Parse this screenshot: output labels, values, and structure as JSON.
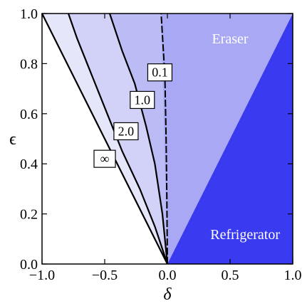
{
  "chart_data": {
    "type": "area",
    "title": "",
    "xlabel": "δ",
    "ylabel": "ϵ",
    "xlim": [
      -1.0,
      1.0
    ],
    "ylim": [
      0.0,
      1.0
    ],
    "grid": false,
    "xticks": [
      "−1.0",
      "−0.5",
      "0.0",
      "0.5",
      "1.0"
    ],
    "yticks": [
      "0.0",
      "0.2",
      "0.4",
      "0.6",
      "0.8",
      "1.0"
    ],
    "regions": [
      {
        "label": "Eraser",
        "color": "#a8a8f5",
        "polygon": [
          [
            0.0,
            0.0
          ],
          [
            1.0,
            1.0
          ],
          [
            -0.05,
            1.0
          ]
        ]
      },
      {
        "label": "Refrigerator",
        "color": "#3a3af0",
        "polygon": [
          [
            0.0,
            0.0
          ],
          [
            1.0,
            0.0
          ],
          [
            1.0,
            1.0
          ]
        ]
      }
    ],
    "bands": [
      {
        "color": "#e6e6fb",
        "between": [
          "∞",
          "2.0"
        ]
      },
      {
        "color": "#d2d2f8",
        "between": [
          "2.0",
          "1.0"
        ]
      },
      {
        "color": "#bbbbf6",
        "between": [
          "1.0",
          "0.1"
        ]
      }
    ],
    "series": [
      {
        "label": "∞",
        "dashed": false,
        "points": [
          [
            0.0,
            0.0
          ],
          [
            -0.25,
            0.25
          ],
          [
            -0.5,
            0.5
          ],
          [
            -0.75,
            0.75
          ],
          [
            -1.0,
            1.0
          ]
        ],
        "label_at": [
          -0.5,
          0.42
        ]
      },
      {
        "label": "2.0",
        "dashed": false,
        "points": [
          [
            0.0,
            0.0
          ],
          [
            -0.1,
            0.15
          ],
          [
            -0.22,
            0.3
          ],
          [
            -0.36,
            0.45
          ],
          [
            -0.48,
            0.6
          ],
          [
            -0.6,
            0.75
          ],
          [
            -0.72,
            0.9
          ],
          [
            -0.79,
            1.0
          ]
        ],
        "label_at": [
          -0.33,
          0.53
        ]
      },
      {
        "label": "1.0",
        "dashed": false,
        "points": [
          [
            0.0,
            0.0
          ],
          [
            -0.04,
            0.2
          ],
          [
            -0.1,
            0.4
          ],
          [
            -0.17,
            0.55
          ],
          [
            -0.26,
            0.72
          ],
          [
            -0.36,
            0.85
          ],
          [
            -0.46,
            1.0
          ]
        ],
        "label_at": [
          -0.2,
          0.655
        ]
      },
      {
        "label": "0.1",
        "dashed": true,
        "points": [
          [
            0.0,
            0.0
          ],
          [
            -0.004,
            0.25
          ],
          [
            -0.01,
            0.5
          ],
          [
            -0.02,
            0.75
          ],
          [
            -0.05,
            1.0
          ]
        ],
        "label_at": [
          -0.06,
          0.765
        ]
      }
    ],
    "annotations": [
      {
        "text": "Eraser",
        "x": 0.5,
        "y": 0.9
      },
      {
        "text": "Refrigerator",
        "x": 0.62,
        "y": 0.12
      }
    ]
  }
}
